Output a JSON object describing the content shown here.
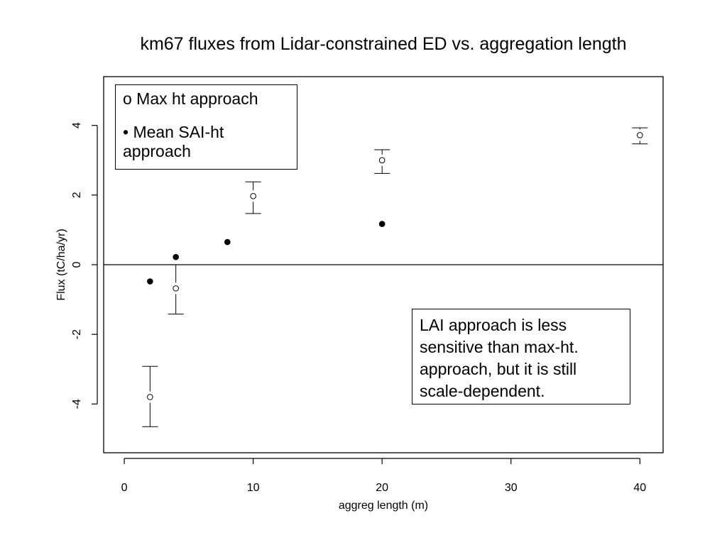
{
  "chart_data": {
    "type": "scatter",
    "title": "km67 fluxes from Lidar-constrained ED vs. aggregation length",
    "xlabel": "aggreg length (m)",
    "ylabel": "Flux (tC/ha/yr)",
    "xlim": [
      -1.6,
      41.8
    ],
    "ylim": [
      -5.4,
      5.4
    ],
    "x_ticks": [
      0,
      10,
      20,
      30,
      40
    ],
    "y_ticks": [
      -4,
      -2,
      0,
      2,
      4
    ],
    "reference_line_y": 0,
    "grid": false,
    "series": [
      {
        "name": "Max ht approach",
        "marker": "open-circle",
        "points": [
          {
            "x": 2,
            "y": -3.8,
            "err_low": -4.65,
            "err_high": -2.92
          },
          {
            "x": 4,
            "y": -0.68,
            "err_low": -1.42,
            "err_high": 0.0
          },
          {
            "x": 10,
            "y": 1.97,
            "err_low": 1.47,
            "err_high": 2.38
          },
          {
            "x": 20,
            "y": 3.0,
            "err_low": 2.62,
            "err_high": 3.3
          },
          {
            "x": 40,
            "y": 3.72,
            "err_low": 3.47,
            "err_high": 3.93
          }
        ]
      },
      {
        "name": "Mean SAI-ht approach",
        "marker": "filled-circle",
        "points": [
          {
            "x": 2,
            "y": -0.48
          },
          {
            "x": 4,
            "y": 0.22
          },
          {
            "x": 8,
            "y": 0.65
          },
          {
            "x": 20,
            "y": 1.17
          }
        ]
      }
    ]
  },
  "legend": {
    "line1": "o Max ht approach",
    "line2": "• Mean SAI-ht approach"
  },
  "note": {
    "lines": [
      "LAI approach is less",
      "sensitive than max-ht.",
      "approach, but it is still",
      "scale-dependent."
    ]
  }
}
